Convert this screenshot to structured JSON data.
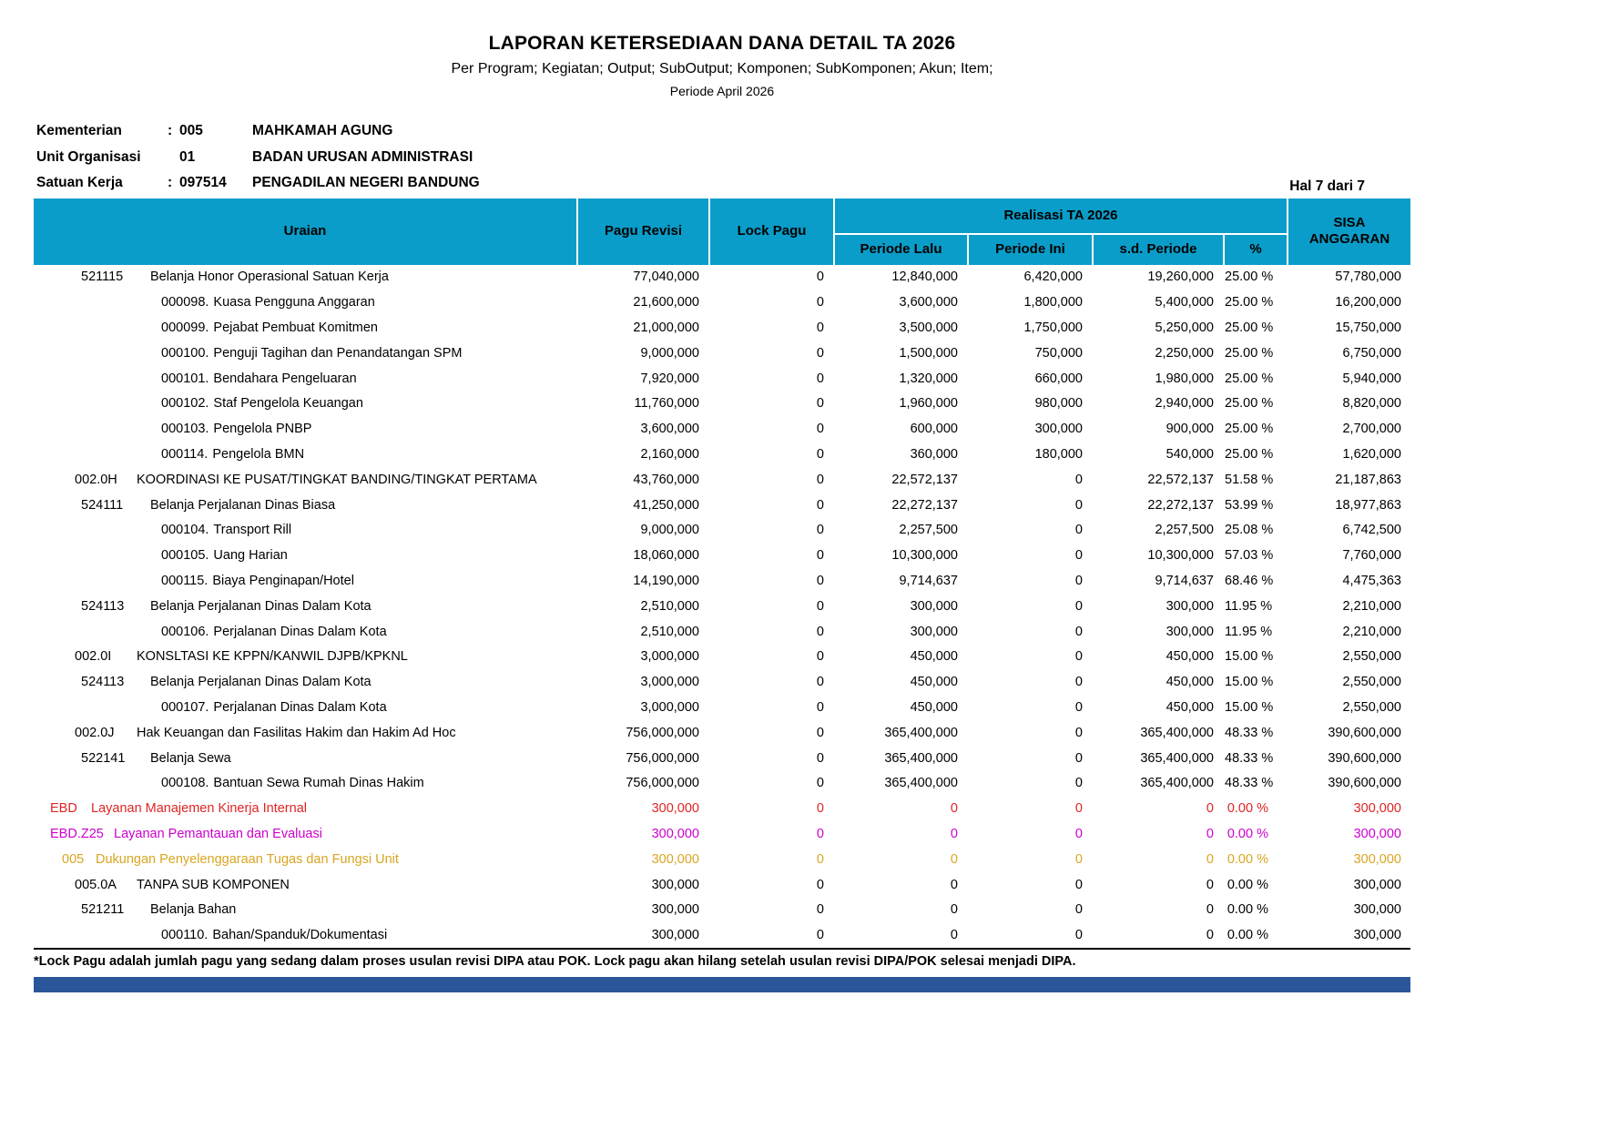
{
  "report": {
    "title": "LAPORAN KETERSEDIAAN DANA DETAIL TA 2026",
    "subtitle": "Per Program; Kegiatan; Output; SubOutput; Komponen; SubKomponen; Akun; Item;",
    "period": "Periode April 2026",
    "page_indicator": "Hal 7 dari 7",
    "meta": [
      {
        "label": "Kementerian",
        "colon": ":",
        "code": "005",
        "name": "MAHKAMAH AGUNG"
      },
      {
        "label": "Unit Organisasi",
        "colon": "",
        "code": "01",
        "name": "BADAN URUSAN ADMINISTRASI"
      },
      {
        "label": "Satuan Kerja",
        "colon": ":",
        "code": "097514",
        "name": "PENGADILAN NEGERI BANDUNG"
      }
    ]
  },
  "table": {
    "headers": {
      "uraian": "Uraian",
      "pagu_revisi": "Pagu Revisi",
      "lock_pagu": "Lock Pagu",
      "realisasi_group": "Realisasi TA 2026",
      "periode_lalu": "Periode Lalu",
      "periode_ini": "Periode Ini",
      "sd_periode": "s.d. Periode",
      "percent": "%",
      "sisa_anggaran": "SISA ANGGARAN"
    },
    "rows": [
      {
        "level": "akun",
        "code": "521115",
        "label": "Belanja Honor Operasional Satuan Kerja",
        "values": [
          "77,040,000",
          "0",
          "12,840,000",
          "6,420,000",
          "19,260,000",
          "25.00 %",
          "57,780,000"
        ]
      },
      {
        "level": "item",
        "code": "000098.",
        "label": "Kuasa Pengguna Anggaran",
        "values": [
          "21,600,000",
          "0",
          "3,600,000",
          "1,800,000",
          "5,400,000",
          "25.00 %",
          "16,200,000"
        ]
      },
      {
        "level": "item",
        "code": "000099.",
        "label": "Pejabat Pembuat Komitmen",
        "values": [
          "21,000,000",
          "0",
          "3,500,000",
          "1,750,000",
          "5,250,000",
          "25.00 %",
          "15,750,000"
        ]
      },
      {
        "level": "item",
        "code": "000100.",
        "label": "Penguji Tagihan dan Penandatangan SPM",
        "values": [
          "9,000,000",
          "0",
          "1,500,000",
          "750,000",
          "2,250,000",
          "25.00 %",
          "6,750,000"
        ]
      },
      {
        "level": "item",
        "code": "000101.",
        "label": "Bendahara Pengeluaran",
        "values": [
          "7,920,000",
          "0",
          "1,320,000",
          "660,000",
          "1,980,000",
          "25.00 %",
          "5,940,000"
        ]
      },
      {
        "level": "item",
        "code": "000102.",
        "label": "Staf Pengelola Keuangan",
        "values": [
          "11,760,000",
          "0",
          "1,960,000",
          "980,000",
          "2,940,000",
          "25.00 %",
          "8,820,000"
        ]
      },
      {
        "level": "item",
        "code": "000103.",
        "label": "Pengelola PNBP",
        "values": [
          "3,600,000",
          "0",
          "600,000",
          "300,000",
          "900,000",
          "25.00 %",
          "2,700,000"
        ]
      },
      {
        "level": "item",
        "code": "000114.",
        "label": "Pengelola BMN",
        "values": [
          "2,160,000",
          "0",
          "360,000",
          "180,000",
          "540,000",
          "25.00 %",
          "1,620,000"
        ]
      },
      {
        "level": "komponen",
        "code": "002.0H",
        "label": "KOORDINASI KE PUSAT/TINGKAT BANDING/TINGKAT PERTAMA",
        "values": [
          "43,760,000",
          "0",
          "22,572,137",
          "0",
          "22,572,137",
          "51.58 %",
          "21,187,863"
        ]
      },
      {
        "level": "akun",
        "code": "524111",
        "label": "Belanja Perjalanan Dinas Biasa",
        "values": [
          "41,250,000",
          "0",
          "22,272,137",
          "0",
          "22,272,137",
          "53.99 %",
          "18,977,863"
        ]
      },
      {
        "level": "item",
        "code": "000104.",
        "label": "Transport Rill",
        "values": [
          "9,000,000",
          "0",
          "2,257,500",
          "0",
          "2,257,500",
          "25.08 %",
          "6,742,500"
        ]
      },
      {
        "level": "item",
        "code": "000105.",
        "label": "Uang Harian",
        "values": [
          "18,060,000",
          "0",
          "10,300,000",
          "0",
          "10,300,000",
          "57.03 %",
          "7,760,000"
        ]
      },
      {
        "level": "item",
        "code": "000115.",
        "label": "Biaya Penginapan/Hotel",
        "values": [
          "14,190,000",
          "0",
          "9,714,637",
          "0",
          "9,714,637",
          "68.46 %",
          "4,475,363"
        ]
      },
      {
        "level": "akun",
        "code": "524113",
        "label": "Belanja Perjalanan Dinas Dalam Kota",
        "values": [
          "2,510,000",
          "0",
          "300,000",
          "0",
          "300,000",
          "11.95 %",
          "2,210,000"
        ]
      },
      {
        "level": "item",
        "code": "000106.",
        "label": "Perjalanan Dinas Dalam Kota",
        "values": [
          "2,510,000",
          "0",
          "300,000",
          "0",
          "300,000",
          "11.95 %",
          "2,210,000"
        ]
      },
      {
        "level": "komponen",
        "code": "002.0I",
        "label": "KONSLTASI KE KPPN/KANWIL DJPB/KPKNL",
        "values": [
          "3,000,000",
          "0",
          "450,000",
          "0",
          "450,000",
          "15.00 %",
          "2,550,000"
        ]
      },
      {
        "level": "akun",
        "code": "524113",
        "label": "Belanja Perjalanan Dinas Dalam Kota",
        "values": [
          "3,000,000",
          "0",
          "450,000",
          "0",
          "450,000",
          "15.00 %",
          "2,550,000"
        ]
      },
      {
        "level": "item",
        "code": "000107.",
        "label": "Perjalanan Dinas Dalam Kota",
        "values": [
          "3,000,000",
          "0",
          "450,000",
          "0",
          "450,000",
          "15.00 %",
          "2,550,000"
        ]
      },
      {
        "level": "komponen",
        "code": "002.0J",
        "label": "Hak Keuangan dan Fasilitas Hakim dan Hakim Ad Hoc",
        "values": [
          "756,000,000",
          "0",
          "365,400,000",
          "0",
          "365,400,000",
          "48.33 %",
          "390,600,000"
        ]
      },
      {
        "level": "akun",
        "code": "522141",
        "label": "Belanja Sewa",
        "values": [
          "756,000,000",
          "0",
          "365,400,000",
          "0",
          "365,400,000",
          "48.33 %",
          "390,600,000"
        ]
      },
      {
        "level": "item",
        "code": "000108.",
        "label": "Bantuan Sewa Rumah Dinas Hakim",
        "values": [
          "756,000,000",
          "0",
          "365,400,000",
          "0",
          "365,400,000",
          "48.33 %",
          "390,600,000"
        ]
      },
      {
        "level": "program",
        "code": "EBD",
        "label": "Layanan Manajemen Kinerja Internal",
        "color": "#e02424",
        "values": [
          "300,000",
          "0",
          "0",
          "0",
          "0",
          "0.00 %",
          "300,000"
        ]
      },
      {
        "level": "suboutput",
        "code": "EBD.Z25",
        "label": "Layanan Pemantauan dan Evaluasi",
        "color": "#cc00cc",
        "values": [
          "300,000",
          "0",
          "0",
          "0",
          "0",
          "0.00 %",
          "300,000"
        ]
      },
      {
        "level": "output",
        "code": "005",
        "label": "Dukungan Penyelenggaraan Tugas dan Fungsi Unit",
        "color": "#d9a521",
        "values": [
          "300,000",
          "0",
          "0",
          "0",
          "0",
          "0.00 %",
          "300,000"
        ]
      },
      {
        "level": "komponen",
        "code": "005.0A",
        "label": "TANPA SUB KOMPONEN",
        "values": [
          "300,000",
          "0",
          "0",
          "0",
          "0",
          "0.00 %",
          "300,000"
        ]
      },
      {
        "level": "akun",
        "code": "521211",
        "label": "Belanja Bahan",
        "values": [
          "300,000",
          "0",
          "0",
          "0",
          "0",
          "0.00 %",
          "300,000"
        ]
      },
      {
        "level": "item",
        "code": "000110.",
        "label": "Bahan/Spanduk/Dokumentasi",
        "values": [
          "300,000",
          "0",
          "0",
          "0",
          "0",
          "0.00 %",
          "300,000"
        ]
      }
    ],
    "value_column_names": [
      "pagu-revisi",
      "lock-pagu",
      "periode-lalu",
      "periode-ini",
      "sd-periode",
      "percent",
      "sisa-anggaran"
    ]
  },
  "footnote": "*Lock Pagu adalah jumlah pagu yang sedang dalam proses usulan revisi DIPA atau POK. Lock pagu akan hilang setelah usulan revisi DIPA/POK selesai menjadi DIPA.",
  "colors": {
    "header_bg": "#0a9dc9",
    "row_red": "#e02424",
    "row_magenta": "#cc00cc",
    "row_gold": "#d9a521",
    "bottom_bar": "#2b579a"
  }
}
